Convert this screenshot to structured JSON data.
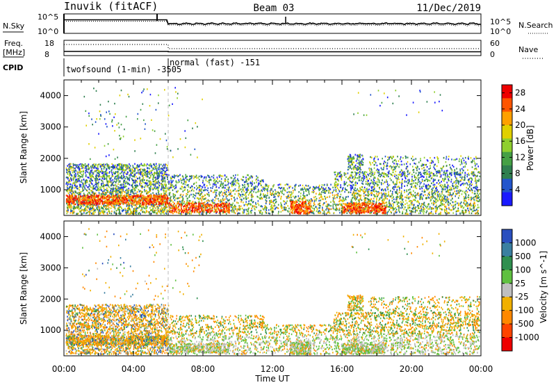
{
  "header": {
    "site": "Inuvik (fitACF)",
    "beam": "Beam 03",
    "date": "11/Dec/2019"
  },
  "nsky_panel": {
    "left_label": "N.Sky",
    "left_ticks": [
      "10^5",
      "10^0"
    ],
    "right_ticks": [
      "10^5",
      "10^0"
    ],
    "right_label": "N.Search"
  },
  "freq_panel": {
    "left_label_1": "Freq.",
    "left_label_2": "[MHz]",
    "left_ticks": [
      "18",
      "8"
    ],
    "right_ticks": [
      "60",
      "0"
    ],
    "right_label": "Nave"
  },
  "cpid": {
    "label": "CPID",
    "modes": [
      {
        "name": "twofsound (1-min) -3505",
        "start_hour": 0,
        "end_hour": 6
      },
      {
        "name": "normal (fast) -151",
        "start_hour": 6,
        "end_hour": 24
      }
    ]
  },
  "chart_data": [
    {
      "type": "heatmap",
      "title": "Power",
      "xlabel": "Time UT",
      "ylabel": "Slant Range [km]",
      "x_ticks": [
        "00:00",
        "04:00",
        "08:00",
        "12:00",
        "16:00",
        "20:00",
        "00:00"
      ],
      "xlim_hours": [
        0,
        24
      ],
      "y_ticks": [
        1000,
        2000,
        3000,
        4000
      ],
      "ylim_km": [
        180,
        4500
      ],
      "colorbar": {
        "label": "Power [dB]",
        "ticks": [
          4,
          8,
          12,
          16,
          20,
          24,
          28
        ],
        "range": [
          0,
          30
        ],
        "colors": [
          "#1a1aff",
          "#2255cc",
          "#2f7f4f",
          "#45a045",
          "#8fcf2f",
          "#e0d000",
          "#ffa000",
          "#ff5500",
          "#ee0000"
        ]
      }
    },
    {
      "type": "heatmap",
      "title": "Velocity",
      "xlabel": "Time UT",
      "ylabel": "Slant Range [km]",
      "x_ticks": [
        "00:00",
        "04:00",
        "08:00",
        "12:00",
        "16:00",
        "20:00",
        "00:00"
      ],
      "xlim_hours": [
        0,
        24
      ],
      "y_ticks": [
        1000,
        2000,
        3000,
        4000
      ],
      "ylim_km": [
        180,
        4500
      ],
      "colorbar": {
        "label": "Velocity [m s^-1]",
        "ticks": [
          "1000",
          "500",
          "100",
          "25",
          "-25",
          "-100",
          "-500",
          "-1000"
        ],
        "colors": [
          "#2a4fbf",
          "#3a7fa0",
          "#2f8f4f",
          "#5fc040",
          "#bfbfbf",
          "#f0b000",
          "#ff8800",
          "#ff4400",
          "#ee0000"
        ]
      }
    }
  ]
}
